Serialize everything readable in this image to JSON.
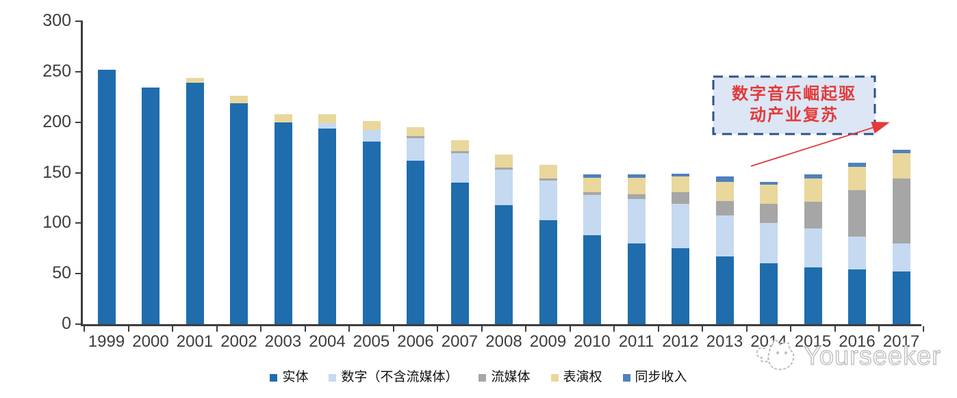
{
  "chart_data": {
    "type": "bar",
    "variant": "stacked",
    "title": "",
    "xlabel": "",
    "ylabel": "",
    "categories": [
      "1999",
      "2000",
      "2001",
      "2002",
      "2003",
      "2004",
      "2005",
      "2006",
      "2007",
      "2008",
      "2009",
      "2010",
      "2011",
      "2012",
      "2013",
      "2014",
      "2015",
      "2016",
      "2017"
    ],
    "series": [
      {
        "name": "实体",
        "color": "#1f6dad",
        "values": [
          252,
          234,
          239,
          219,
          200,
          194,
          181,
          162,
          140,
          118,
          103,
          88,
          80,
          75,
          67,
          60,
          56,
          54,
          52
        ]
      },
      {
        "name": "数字（不含流媒体）",
        "color": "#c5d9f1",
        "values": [
          0,
          0,
          0,
          0,
          0,
          5,
          11,
          22,
          29,
          35,
          39,
          40,
          44,
          44,
          41,
          40,
          39,
          33,
          28
        ]
      },
      {
        "name": "流媒体",
        "color": "#a6a6a6",
        "values": [
          0,
          0,
          0,
          0,
          0,
          0,
          0,
          2,
          2,
          2,
          2,
          3,
          5,
          12,
          14,
          19,
          26,
          46,
          64
        ]
      },
      {
        "name": "表演权",
        "color": "#e9d79c",
        "values": [
          0,
          0,
          5,
          7,
          8,
          9,
          9,
          9,
          11,
          13,
          14,
          14,
          16,
          15,
          19,
          19,
          23,
          23,
          25
        ]
      },
      {
        "name": "同步收入",
        "color": "#4f81bd",
        "values": [
          0,
          0,
          0,
          0,
          0,
          0,
          0,
          0,
          0,
          0,
          0,
          3,
          3,
          3,
          5,
          3,
          4,
          4,
          4
        ]
      }
    ],
    "ylim": [
      0,
      300
    ],
    "yticks": [
      0,
      50,
      100,
      150,
      200,
      250,
      300
    ],
    "grid": false,
    "legend_position": "bottom"
  },
  "annotation": {
    "line1": "数字音乐崛起驱",
    "line2": "动产业复苏",
    "text_color": "#e23a3a",
    "box_fill": "#dce6f4",
    "box_border": "#2f5288",
    "arrow_color": "#e23a3a"
  },
  "watermark": {
    "text": "Yourseeker",
    "logo": "cat-logo-icon",
    "color": "#c6c6c6"
  },
  "axis": {
    "line_color": "#3c3c3c",
    "label_color": "#3d3d3d"
  }
}
